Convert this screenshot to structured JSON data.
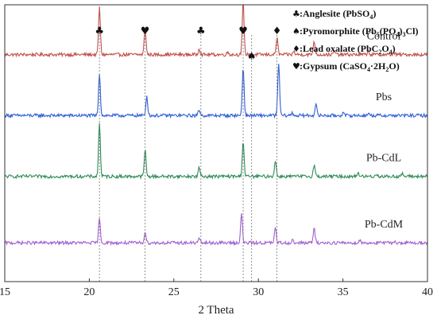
{
  "chart_data": {
    "type": "line",
    "xlabel": "2 Theta",
    "ylabel": "",
    "xlim": [
      15,
      40
    ],
    "x_ticks": [
      "15",
      "20",
      "25",
      "30",
      "35",
      "40"
    ],
    "grid": false,
    "legend_position": "top-right",
    "legend": [
      {
        "symbol": "♣",
        "mineral": "Anglesite",
        "formula": [
          [
            "PbSO",
            ""
          ],
          [
            "4",
            "sub"
          ]
        ]
      },
      {
        "symbol": "♠",
        "mineral": "Pyromorphite",
        "formula": [
          [
            "Pb",
            ""
          ],
          [
            "5",
            "sub"
          ],
          [
            "(PO",
            ""
          ],
          [
            "4",
            "sub"
          ],
          [
            ")",
            ""
          ],
          [
            "3",
            "sub"
          ],
          [
            "Cl",
            ""
          ]
        ]
      },
      {
        "symbol": "♦",
        "mineral": "Lead oxalate",
        "formula": [
          [
            "PbC",
            ""
          ],
          [
            "2",
            "sub"
          ],
          [
            "O",
            ""
          ],
          [
            "4",
            "sub"
          ]
        ]
      },
      {
        "symbol": "♥",
        "mineral": "Gypsum",
        "formula": [
          [
            "CaSO",
            ""
          ],
          [
            "4",
            "sub"
          ],
          [
            "·2H",
            ""
          ],
          [
            "2",
            "sub"
          ],
          [
            "O",
            ""
          ]
        ]
      }
    ],
    "reference_lines": [
      {
        "x": 20.6,
        "symbol": "♣"
      },
      {
        "x": 23.3,
        "symbol": "♥"
      },
      {
        "x": 26.6,
        "symbol": "♣"
      },
      {
        "x": 29.1,
        "symbol": "♥"
      },
      {
        "x": 29.6,
        "symbol": "♠"
      },
      {
        "x": 31.1,
        "symbol": "♦"
      }
    ],
    "series": [
      {
        "name": "Control",
        "color": "#c0504d",
        "baseline": 0.82,
        "peaks": [
          [
            20.6,
            0.92
          ],
          [
            23.3,
            0.52
          ],
          [
            26.5,
            0.12
          ],
          [
            28.2,
            0.05
          ],
          [
            29.1,
            1.0
          ],
          [
            31.1,
            0.33
          ],
          [
            32.1,
            0.06
          ],
          [
            33.3,
            0.27
          ],
          [
            34.5,
            0.07
          ],
          [
            36.5,
            0.07
          ],
          [
            38.0,
            0.04
          ]
        ]
      },
      {
        "name": "Pbs",
        "color": "#2e5fd6",
        "baseline": 0.6,
        "peaks": [
          [
            20.6,
            0.83
          ],
          [
            23.4,
            0.38
          ],
          [
            26.5,
            0.12
          ],
          [
            29.1,
            0.95
          ],
          [
            31.2,
            1.03
          ],
          [
            32.0,
            0.05
          ],
          [
            33.4,
            0.23
          ],
          [
            35.0,
            0.05
          ],
          [
            36.5,
            0.04
          ]
        ]
      },
      {
        "name": "Pb-CdL",
        "color": "#2e8b57",
        "baseline": 0.38,
        "peaks": [
          [
            20.6,
            1.05
          ],
          [
            23.3,
            0.52
          ],
          [
            26.5,
            0.17
          ],
          [
            29.1,
            0.7
          ],
          [
            31.0,
            0.31
          ],
          [
            33.3,
            0.23
          ],
          [
            35.9,
            0.08
          ],
          [
            37.0,
            0.05
          ],
          [
            38.5,
            0.05
          ]
        ]
      },
      {
        "name": "Pb-CdM",
        "color": "#a060d0",
        "baseline": 0.14,
        "peaks": [
          [
            20.6,
            0.47
          ],
          [
            23.3,
            0.22
          ],
          [
            26.5,
            0.09
          ],
          [
            29.0,
            0.57
          ],
          [
            31.0,
            0.29
          ],
          [
            32.0,
            0.05
          ],
          [
            33.3,
            0.28
          ],
          [
            36.0,
            0.05
          ],
          [
            38.0,
            0.04
          ]
        ]
      }
    ]
  }
}
